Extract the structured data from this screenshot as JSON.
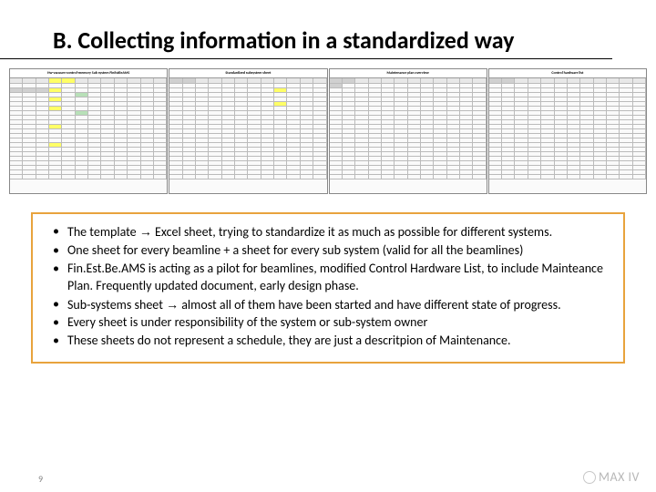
{
  "title": "B. Collecting information in a standardized way",
  "pageNumber": "9",
  "logoText": "MAX IV",
  "sheets": [
    {
      "title": "Hw-vacuum-control-memory  Sub system FinEstBeAMS",
      "cols": 12,
      "rows": 22,
      "highlights": [
        {
          "r": 0,
          "c": 3,
          "cls": "hl-yellow"
        },
        {
          "r": 0,
          "c": 4,
          "cls": "hl-yellow"
        },
        {
          "r": 2,
          "c": 0,
          "cls": "hl-gray"
        },
        {
          "r": 2,
          "c": 1,
          "cls": "hl-gray"
        },
        {
          "r": 2,
          "c": 2,
          "cls": "hl-gray"
        },
        {
          "r": 2,
          "c": 3,
          "cls": "hl-yellow"
        },
        {
          "r": 3,
          "c": 5,
          "cls": "hl-green"
        },
        {
          "r": 7,
          "c": 5,
          "cls": "hl-green"
        },
        {
          "r": 4,
          "c": 3,
          "cls": "hl-yellow"
        },
        {
          "r": 6,
          "c": 3,
          "cls": "hl-yellow"
        },
        {
          "r": 10,
          "c": 3,
          "cls": "hl-yellow"
        },
        {
          "r": 14,
          "c": 3,
          "cls": "hl-yellow"
        }
      ]
    },
    {
      "title": "Standardized subsystem sheet",
      "cols": 12,
      "rows": 22,
      "highlights": [
        {
          "r": 2,
          "c": 8,
          "cls": "hl-yellow"
        },
        {
          "r": 5,
          "c": 8,
          "cls": "hl-yellow"
        },
        {
          "r": 0,
          "c": 0,
          "cls": "hl-gray"
        },
        {
          "r": 0,
          "c": 1,
          "cls": "hl-gray"
        }
      ]
    },
    {
      "title": "Maintenance plan overview",
      "cols": 12,
      "rows": 22,
      "highlights": [
        {
          "r": 0,
          "c": 0,
          "cls": "hl-gray"
        },
        {
          "r": 0,
          "c": 1,
          "cls": "hl-gray"
        },
        {
          "r": 1,
          "c": 0,
          "cls": "hl-gray"
        }
      ]
    },
    {
      "title": "Control hardware list",
      "cols": 12,
      "rows": 22,
      "highlights": [
        {
          "r": 0,
          "c": 0,
          "cls": "hl-gray"
        },
        {
          "r": 0,
          "c": 1,
          "cls": "hl-gray"
        }
      ]
    }
  ],
  "bullets": [
    "The template → Excel sheet, trying to standardize it as much as possible for different systems.",
    "One sheet for every beamline + a sheet for every sub system (valid for all the beamlines)",
    "Fin.Est.Be.AMS is acting as a pilot for beamlines, modified Control Hardware List, to include Mainteance Plan. Frequently updated document, early design phase.",
    "Sub-systems sheet → almost all of them have been started and have different state of progress.",
    "Every sheet is under responsibility of the system or sub-system owner",
    "These sheets do not represent a schedule, they are just a descritpion of Maintenance."
  ]
}
